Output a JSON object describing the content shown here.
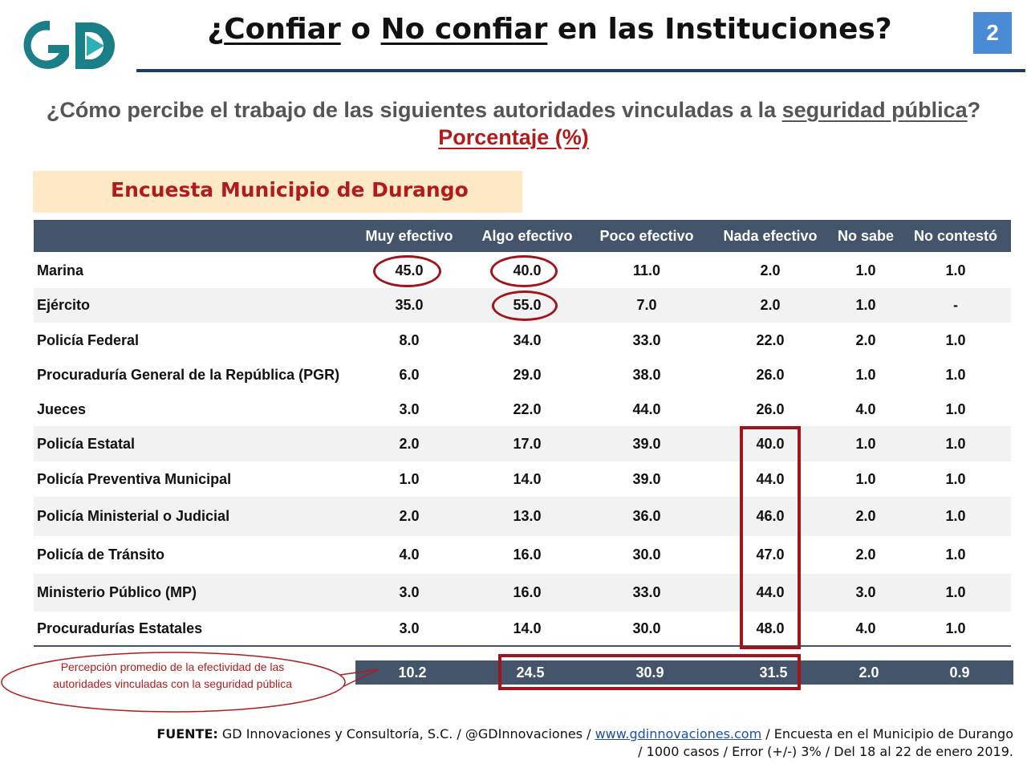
{
  "header": {
    "logo_text": "GD",
    "title_prefix": "¿",
    "title_word1": "Confiar",
    "title_mid": " o ",
    "title_word2": "No confiar",
    "title_suffix": " en las Instituciones?",
    "page_number": "2"
  },
  "question": {
    "text_before": "¿Cómo percibe el trabajo de las siguientes autoridades vinculadas a la ",
    "underlined": "seguridad pública",
    "text_after": "?",
    "unit": "Porcentaje (%)"
  },
  "survey_title": "Encuesta Municipio de Durango",
  "table": {
    "columns": [
      "Muy efectivo",
      "Algo efectivo",
      "Poco efectivo",
      "Nada efectivo",
      "No sabe",
      "No contestó"
    ],
    "rows": [
      {
        "label": "Marina",
        "values": [
          "45.0",
          "40.0",
          "11.0",
          "2.0",
          "1.0",
          "1.0"
        ]
      },
      {
        "label": "Ejército",
        "values": [
          "35.0",
          "55.0",
          "7.0",
          "2.0",
          "1.0",
          "-"
        ]
      },
      {
        "label": "Policía Federal",
        "values": [
          "8.0",
          "34.0",
          "33.0",
          "22.0",
          "2.0",
          "1.0"
        ]
      },
      {
        "label": "Procuraduría General de la República (PGR)",
        "values": [
          "6.0",
          "29.0",
          "38.0",
          "26.0",
          "1.0",
          "1.0"
        ]
      },
      {
        "label": "Jueces",
        "values": [
          "3.0",
          "22.0",
          "44.0",
          "26.0",
          "4.0",
          "1.0"
        ]
      },
      {
        "label": "Policía Estatal",
        "values": [
          "2.0",
          "17.0",
          "39.0",
          "40.0",
          "1.0",
          "1.0"
        ]
      },
      {
        "label": "Policía Preventiva Municipal",
        "values": [
          "1.0",
          "14.0",
          "39.0",
          "44.0",
          "1.0",
          "1.0"
        ]
      },
      {
        "label": "Policía Ministerial o Judicial",
        "values": [
          "2.0",
          "13.0",
          "36.0",
          "46.0",
          "2.0",
          "1.0"
        ]
      },
      {
        "label": "Policía de Tránsito",
        "values": [
          "4.0",
          "16.0",
          "30.0",
          "47.0",
          "2.0",
          "1.0"
        ]
      },
      {
        "label": "Ministerio Público (MP)",
        "values": [
          "3.0",
          "16.0",
          "33.0",
          "44.0",
          "3.0",
          "1.0"
        ]
      },
      {
        "label": "Procuradurías Estatales",
        "values": [
          "3.0",
          "14.0",
          "30.0",
          "48.0",
          "4.0",
          "1.0"
        ]
      }
    ],
    "average": [
      "10.2",
      "24.5",
      "30.9",
      "31.5",
      "2.0",
      "0.9"
    ]
  },
  "callout": "Percepción promedio de la efectividad de las autoridades vinculadas con la seguridad pública",
  "footer": {
    "source_label": "FUENTE:",
    "source_text": " GD Innovaciones y Consultoría, S.C. / @GDInnovaciones / ",
    "link": "www.gdinnovaciones.com",
    "after_link": " / Encuesta en el Municipio de Durango",
    "line2": "/ 1000 casos / Error (+/-) 3% / Del 18 al 22 de enero 2019."
  },
  "colors": {
    "header_bg": "#44546a",
    "highlight": "#a0151c",
    "accent_red": "#b01c1c",
    "logo_teal": "#1a7f86",
    "page_badge": "#4a8bd6",
    "survey_box": "#fde9c6"
  }
}
